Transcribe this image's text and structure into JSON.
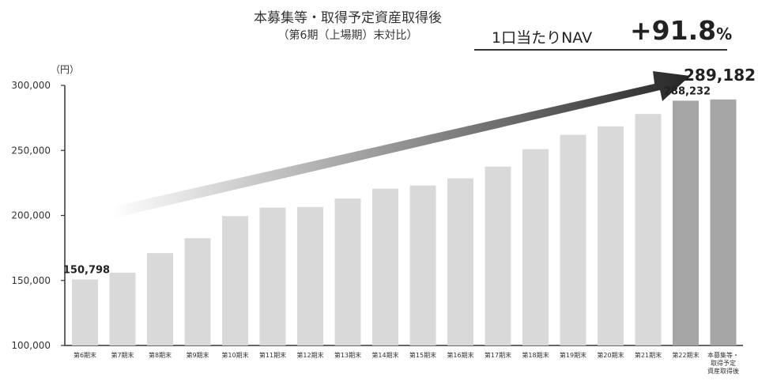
{
  "header": {
    "title": "本募集等・取得予定資産取得後",
    "subtitle": "（第6期（上場期）末対比）",
    "nav_label": "1口当たりNAV",
    "nav_change": "+91.8",
    "nav_change_unit": "%"
  },
  "colors": {
    "bar": "#d9d9d9",
    "bar_highlight": "#a6a6a6",
    "axis": "#333333",
    "arrow_start": "#ffffff",
    "arrow_end": "#262626"
  },
  "chart_data": {
    "type": "bar",
    "unit_label": "（円）",
    "categories": [
      "第6期末",
      "第7期末",
      "第8期末",
      "第9期末",
      "第10期末",
      "第11期末",
      "第12期末",
      "第13期末",
      "第14期末",
      "第15期末",
      "第16期末",
      "第17期末",
      "第18期末",
      "第19期末",
      "第20期末",
      "第21期末",
      "第22期末",
      "本募集等・取得予定資産取得後"
    ],
    "values": [
      150798,
      156000,
      171000,
      182500,
      199500,
      206000,
      206500,
      213000,
      220500,
      223000,
      228500,
      237500,
      251000,
      262000,
      268500,
      278000,
      288232,
      289182
    ],
    "highlight": [
      false,
      false,
      false,
      false,
      false,
      false,
      false,
      false,
      false,
      false,
      false,
      false,
      false,
      false,
      false,
      false,
      true,
      true
    ],
    "data_labels": [
      {
        "index": 0,
        "text": "150,798"
      },
      {
        "index": 16,
        "text": "288,232"
      },
      {
        "index": 17,
        "text": "289,182"
      }
    ],
    "ylim": [
      100000,
      300000
    ],
    "yticks": [
      100000,
      150000,
      200000,
      250000,
      300000
    ],
    "ytick_labels": [
      "100,000",
      "150,000",
      "200,000",
      "250,000",
      "300,000"
    ],
    "grid": false,
    "annotation": "trend-arrow"
  }
}
